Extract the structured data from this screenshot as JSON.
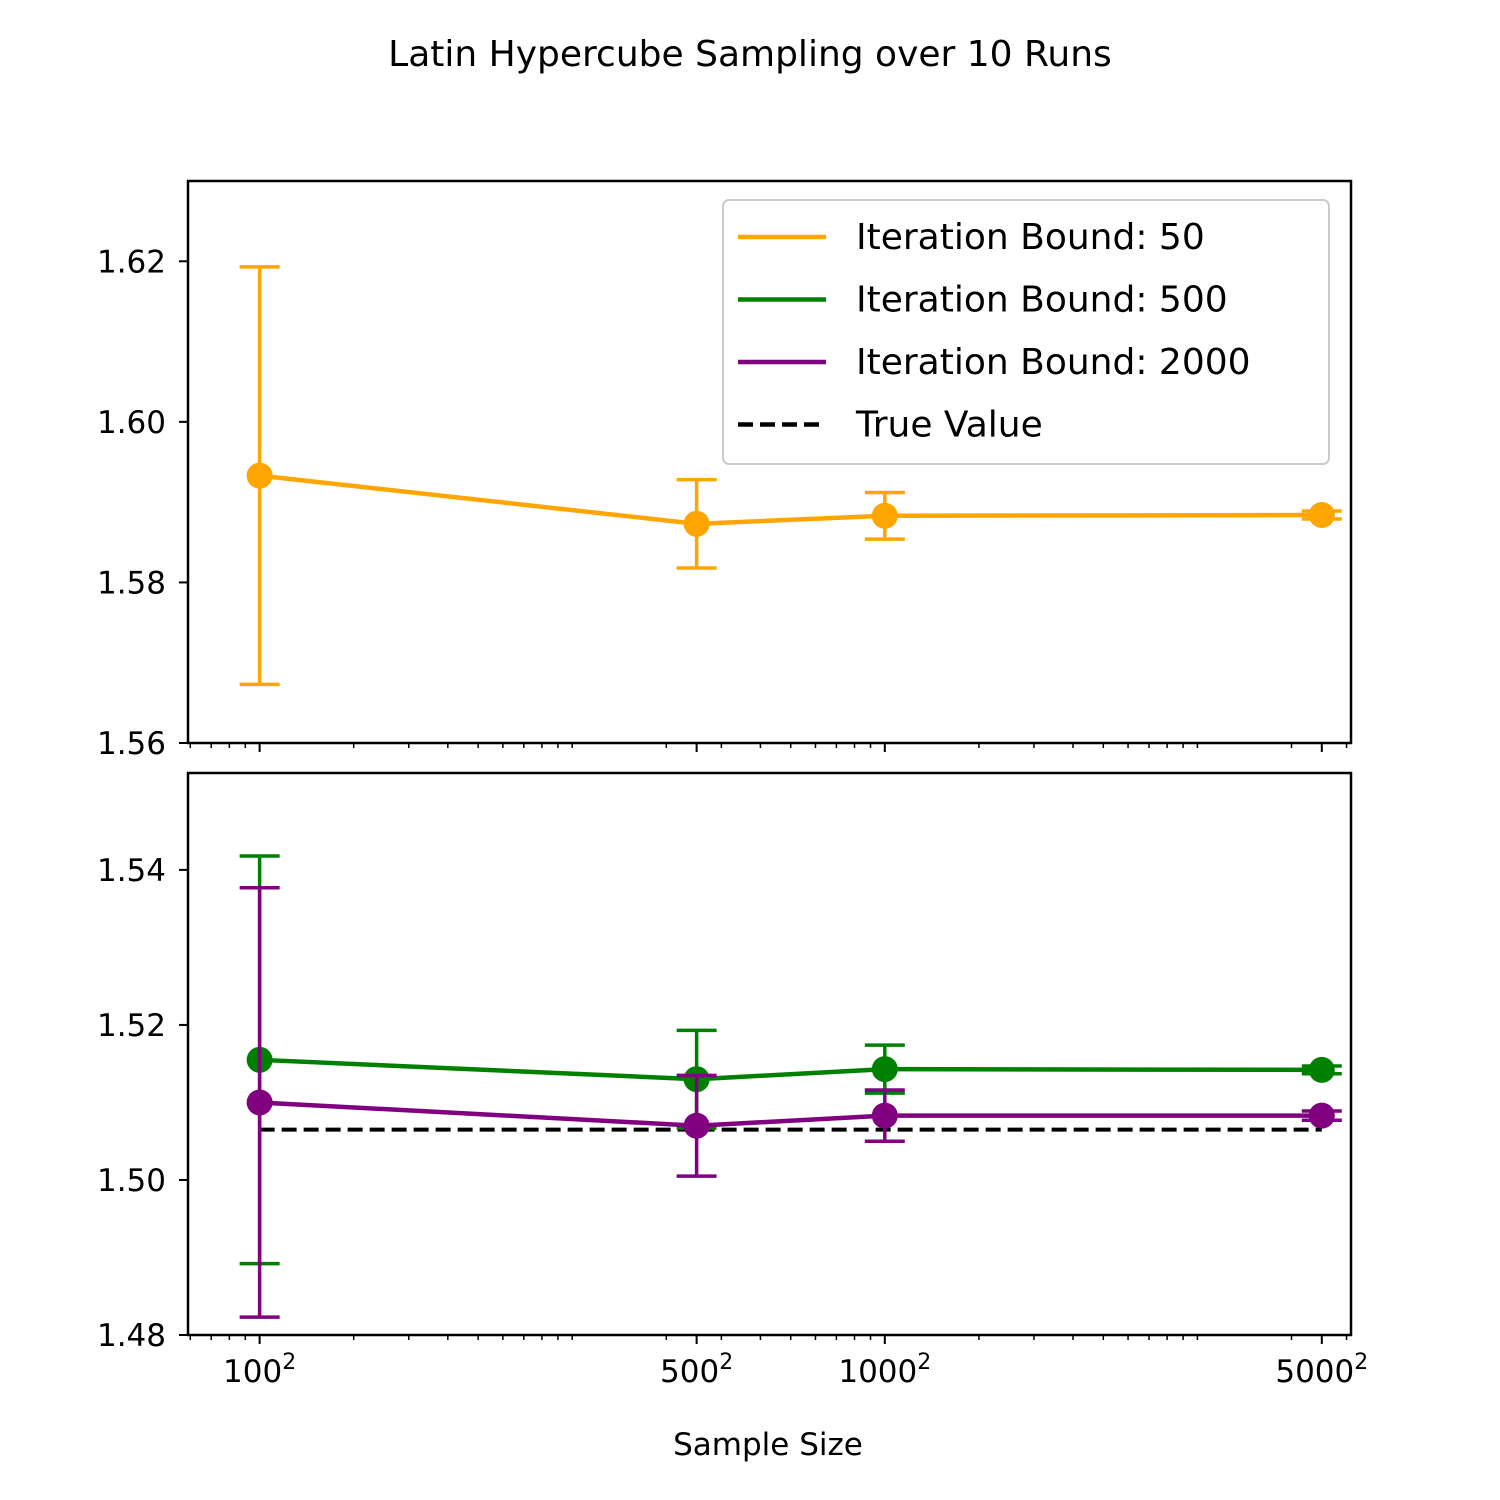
{
  "chart_data": {
    "type": "line",
    "title": "Latin Hypercube Sampling over 10 Runs",
    "xlabel": "Sample Size",
    "x_scale": "log",
    "x": [
      10000,
      250000,
      1000000,
      25000000
    ],
    "x_tick_labels": [
      {
        "value": 10000,
        "base": "100",
        "sup": "2"
      },
      {
        "value": 250000,
        "base": "500",
        "sup": "2"
      },
      {
        "value": 1000000,
        "base": "1000",
        "sup": "2"
      },
      {
        "value": 25000000,
        "base": "5000",
        "sup": "2"
      }
    ],
    "xlim": [
      5900,
      31000000
    ],
    "panels": [
      {
        "name": "top",
        "ylim": [
          1.56,
          1.63
        ],
        "yticks": [
          1.56,
          1.58,
          1.6,
          1.62
        ],
        "ytick_labels": [
          "1.56",
          "1.58",
          "1.60",
          "1.62"
        ],
        "series": [
          {
            "name": "Iteration Bound: 50",
            "color": "#FFA500",
            "values": [
              1.5933,
              1.5873,
              1.5883,
              1.5884
            ],
            "errors": [
              0.026,
              0.0055,
              0.0029,
              0.0005
            ]
          }
        ]
      },
      {
        "name": "bottom",
        "ylim": [
          1.48,
          1.5525
        ],
        "yticks": [
          1.48,
          1.5,
          1.52,
          1.54
        ],
        "ytick_labels": [
          "1.48",
          "1.50",
          "1.52",
          "1.54"
        ],
        "series": [
          {
            "name": "Iteration Bound: 500",
            "color": "#008000",
            "values": [
              1.5155,
              1.513,
              1.5143,
              1.5142
            ],
            "errors": [
              0.0263,
              0.0063,
              0.0031,
              0.0005
            ]
          },
          {
            "name": "Iteration Bound: 2000",
            "color": "#800080",
            "values": [
              1.51,
              1.507,
              1.5083,
              1.5083
            ],
            "errors": [
              0.0277,
              0.0065,
              0.0033,
              0.0006
            ]
          }
        ],
        "reference_line": {
          "name": "True Value",
          "color": "#000000",
          "value": 1.5065
        }
      }
    ],
    "legend": {
      "location": "upper right of top panel",
      "entries": [
        {
          "label": "Iteration Bound: 50",
          "color": "#FFA500",
          "style": "solid"
        },
        {
          "label": "Iteration Bound: 500",
          "color": "#008000",
          "style": "solid"
        },
        {
          "label": "Iteration Bound: 2000",
          "color": "#800080",
          "style": "solid"
        },
        {
          "label": "True Value",
          "color": "#000000",
          "style": "dashed"
        }
      ]
    }
  }
}
